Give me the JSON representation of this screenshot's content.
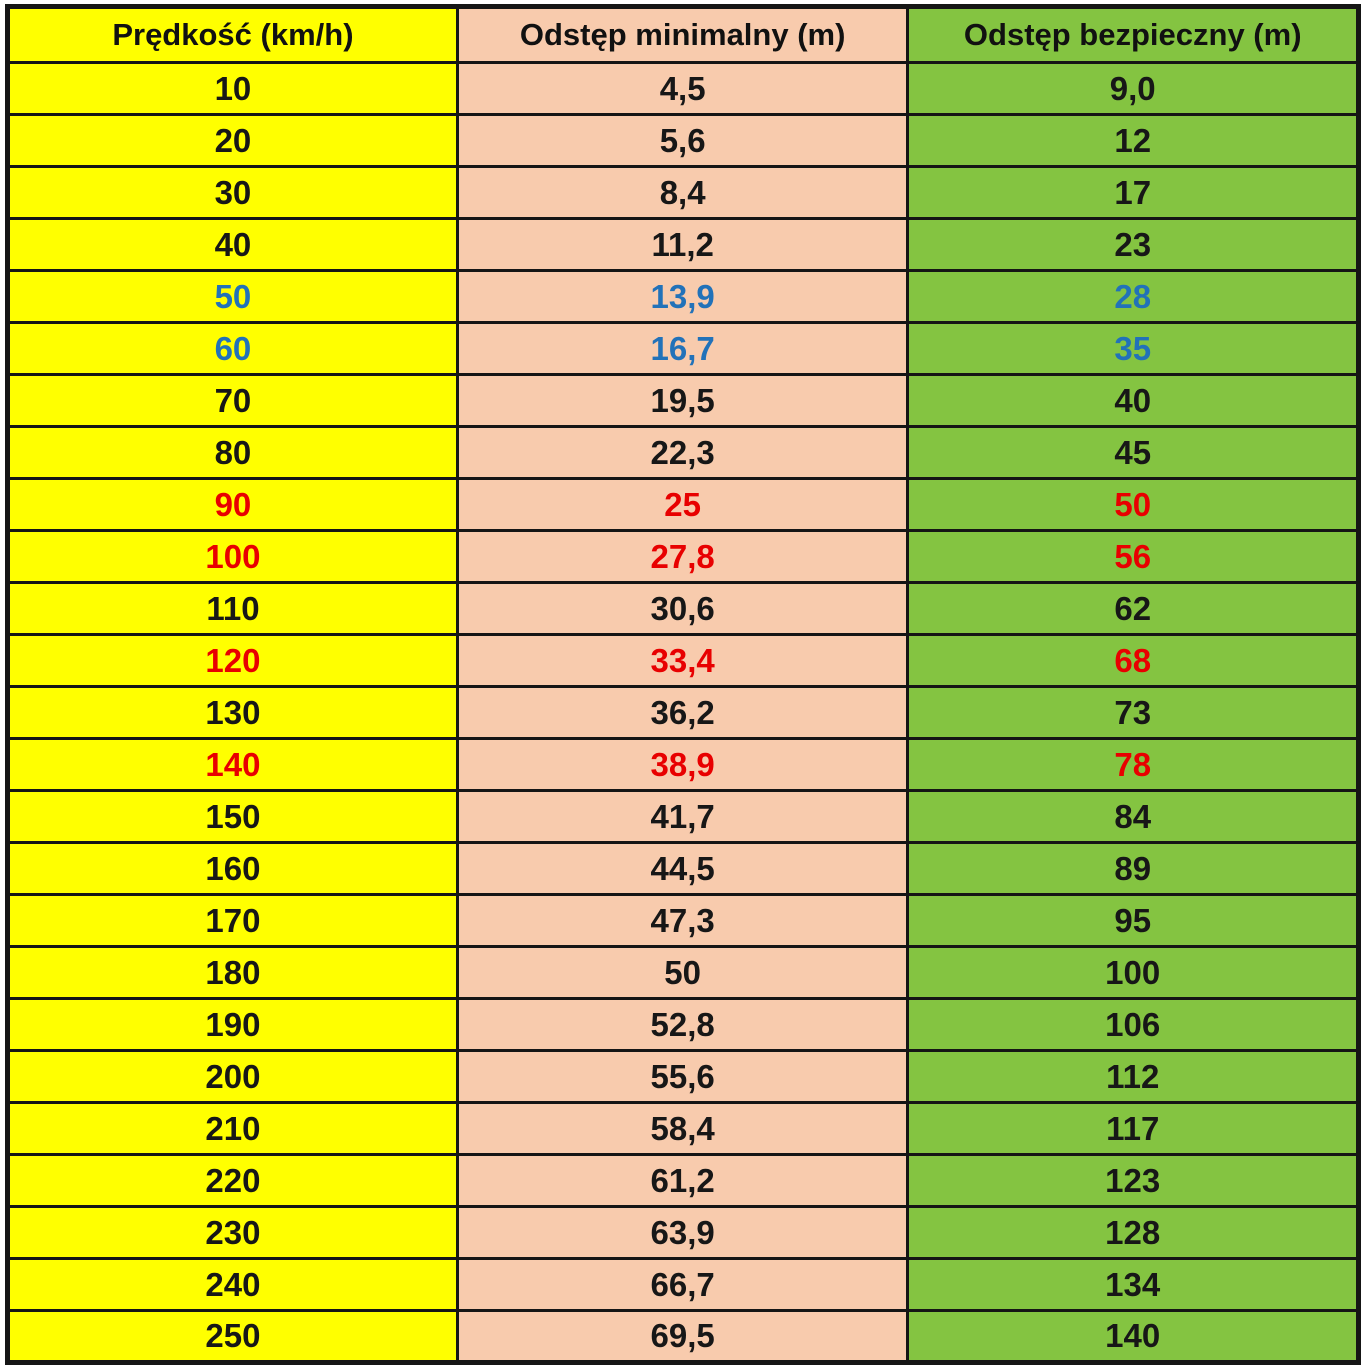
{
  "colors": {
    "speed_column_bg": "#FFFF00",
    "min_column_bg": "#F8CBAD",
    "safe_column_bg": "#84C441",
    "accent_blue": "#2272B9",
    "accent_red": "#E80000",
    "border": "#151515"
  },
  "table": {
    "columns": [
      {
        "key": "speed",
        "label": "Prędkość (km/h)"
      },
      {
        "key": "min",
        "label": "Odstęp minimalny (m)"
      },
      {
        "key": "safe",
        "label": "Odstęp bezpieczny (m)"
      }
    ],
    "rows": [
      {
        "speed": "10",
        "min": "4,5",
        "safe": "9,0",
        "color": "black"
      },
      {
        "speed": "20",
        "min": "5,6",
        "safe": "12",
        "color": "black"
      },
      {
        "speed": "30",
        "min": "8,4",
        "safe": "17",
        "color": "black"
      },
      {
        "speed": "40",
        "min": "11,2",
        "safe": "23",
        "color": "black"
      },
      {
        "speed": "50",
        "min": "13,9",
        "safe": "28",
        "color": "blue"
      },
      {
        "speed": "60",
        "min": "16,7",
        "safe": "35",
        "color": "blue"
      },
      {
        "speed": "70",
        "min": "19,5",
        "safe": "40",
        "color": "black"
      },
      {
        "speed": "80",
        "min": "22,3",
        "safe": "45",
        "color": "black"
      },
      {
        "speed": "90",
        "min": "25",
        "safe": "50",
        "color": "red"
      },
      {
        "speed": "100",
        "min": "27,8",
        "safe": "56",
        "color": "red"
      },
      {
        "speed": "110",
        "min": "30,6",
        "safe": "62",
        "color": "black"
      },
      {
        "speed": "120",
        "min": "33,4",
        "safe": "68",
        "color": "red"
      },
      {
        "speed": "130",
        "min": "36,2",
        "safe": "73",
        "color": "black"
      },
      {
        "speed": "140",
        "min": "38,9",
        "safe": "78",
        "color": "red"
      },
      {
        "speed": "150",
        "min": "41,7",
        "safe": "84",
        "color": "black"
      },
      {
        "speed": "160",
        "min": "44,5",
        "safe": "89",
        "color": "black"
      },
      {
        "speed": "170",
        "min": "47,3",
        "safe": "95",
        "color": "black"
      },
      {
        "speed": "180",
        "min": "50",
        "safe": "100",
        "color": "black"
      },
      {
        "speed": "190",
        "min": "52,8",
        "safe": "106",
        "color": "black"
      },
      {
        "speed": "200",
        "min": "55,6",
        "safe": "112",
        "color": "black"
      },
      {
        "speed": "210",
        "min": "58,4",
        "safe": "117",
        "color": "black"
      },
      {
        "speed": "220",
        "min": "61,2",
        "safe": "123",
        "color": "black"
      },
      {
        "speed": "230",
        "min": "63,9",
        "safe": "128",
        "color": "black"
      },
      {
        "speed": "240",
        "min": "66,7",
        "safe": "134",
        "color": "black"
      },
      {
        "speed": "250",
        "min": "69,5",
        "safe": "140",
        "color": "black"
      }
    ]
  },
  "chart_data": {
    "type": "table",
    "title": "",
    "columns": [
      "Prędkość (km/h)",
      "Odstęp minimalny (m)",
      "Odstęp bezpieczny (m)"
    ],
    "rows": [
      [
        10,
        4.5,
        9.0
      ],
      [
        20,
        5.6,
        12
      ],
      [
        30,
        8.4,
        17
      ],
      [
        40,
        11.2,
        23
      ],
      [
        50,
        13.9,
        28
      ],
      [
        60,
        16.7,
        35
      ],
      [
        70,
        19.5,
        40
      ],
      [
        80,
        22.3,
        45
      ],
      [
        90,
        25,
        50
      ],
      [
        100,
        27.8,
        56
      ],
      [
        110,
        30.6,
        62
      ],
      [
        120,
        33.4,
        68
      ],
      [
        130,
        36.2,
        73
      ],
      [
        140,
        38.9,
        78
      ],
      [
        150,
        41.7,
        84
      ],
      [
        160,
        44.5,
        89
      ],
      [
        170,
        47.3,
        95
      ],
      [
        180,
        50,
        100
      ],
      [
        190,
        52.8,
        106
      ],
      [
        200,
        55.6,
        112
      ],
      [
        210,
        58.4,
        117
      ],
      [
        220,
        61.2,
        123
      ],
      [
        230,
        63.9,
        128
      ],
      [
        240,
        66.7,
        134
      ],
      [
        250,
        69.5,
        140
      ]
    ],
    "row_text_colors": {
      "blue_rows_kmh": [
        50,
        60
      ],
      "red_rows_kmh": [
        90,
        100,
        120,
        140
      ]
    },
    "legend_position": "none",
    "grid": true
  }
}
